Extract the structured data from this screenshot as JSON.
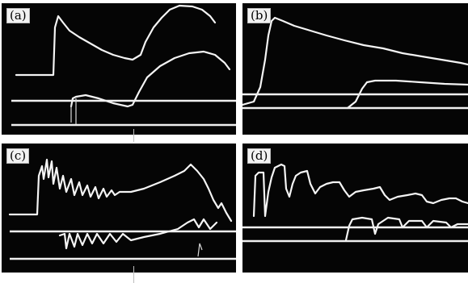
{
  "panels": {
    "a": {
      "label": "(a)"
    },
    "b": {
      "label": "(b)"
    },
    "c": {
      "label": "(c)"
    },
    "d": {
      "label": "(d)"
    }
  }
}
